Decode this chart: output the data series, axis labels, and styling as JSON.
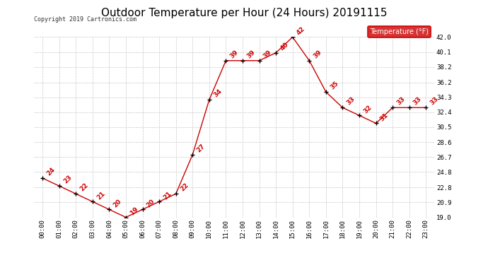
{
  "title": "Outdoor Temperature per Hour (24 Hours) 20191115",
  "copyright": "Copyright 2019 Cartronics.com",
  "legend_label": "Temperature (°F)",
  "hours": [
    "00:00",
    "01:00",
    "02:00",
    "03:00",
    "04:00",
    "05:00",
    "06:00",
    "07:00",
    "08:00",
    "09:00",
    "10:00",
    "11:00",
    "12:00",
    "13:00",
    "14:00",
    "15:00",
    "16:00",
    "17:00",
    "18:00",
    "19:00",
    "20:00",
    "21:00",
    "22:00",
    "23:00"
  ],
  "temps": [
    24,
    23,
    22,
    21,
    20,
    19,
    20,
    21,
    22,
    27,
    34,
    39,
    39,
    39,
    40,
    42,
    39,
    35,
    33,
    32,
    31,
    33,
    33,
    33
  ],
  "ylim_min": 19.0,
  "ylim_max": 42.0,
  "yticks": [
    19.0,
    20.9,
    22.8,
    24.8,
    26.7,
    28.6,
    30.5,
    32.4,
    34.3,
    36.2,
    38.2,
    40.1,
    42.0
  ],
  "line_color": "#cc0000",
  "marker_color": "#000000",
  "bg_color": "#ffffff",
  "grid_color": "#c8c8c8",
  "title_fontsize": 11,
  "legend_bg": "#cc0000",
  "legend_text_color": "#ffffff",
  "legend_fontsize": 7,
  "tick_fontsize": 6.5,
  "annot_fontsize": 6.5,
  "copyright_fontsize": 6
}
